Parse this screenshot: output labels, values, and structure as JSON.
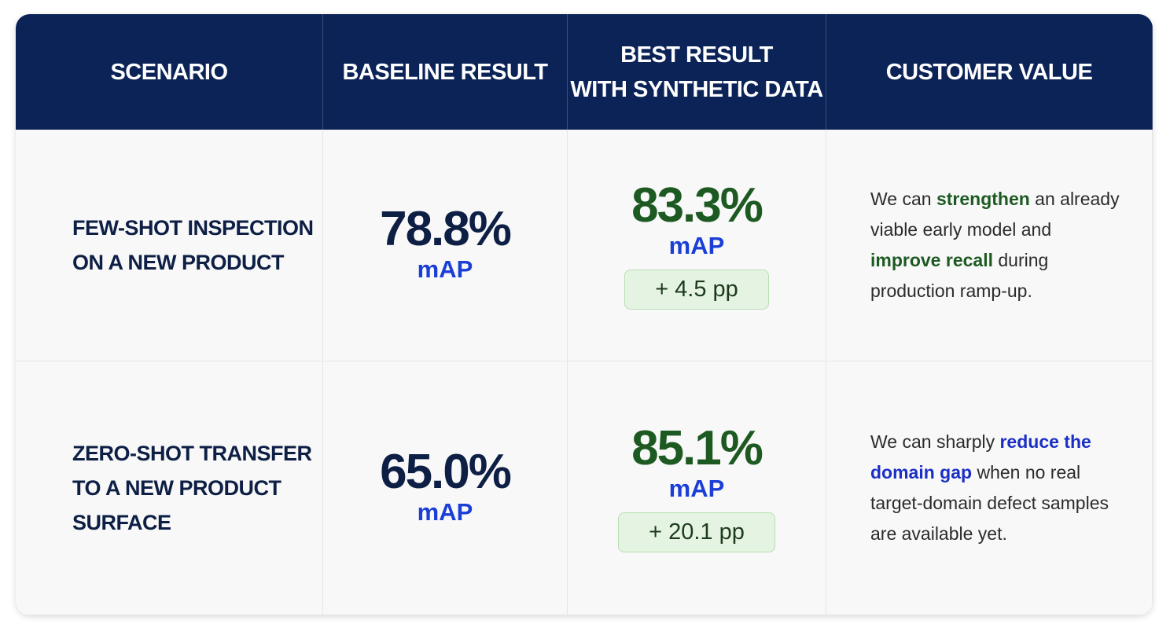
{
  "table": {
    "headers": [
      [
        "SCENARIO"
      ],
      [
        "BASELINE RESULT"
      ],
      [
        "BEST RESULT",
        "WITH SYNTHETIC DATA"
      ],
      [
        "CUSTOMER VALUE"
      ]
    ],
    "rows": [
      {
        "scenario": [
          "FEW-SHOT INSPECTION",
          "ON A NEW PRODUCT"
        ],
        "baseline": {
          "value": "78.8%",
          "unit": "mAP"
        },
        "best": {
          "value": "83.3%",
          "unit": "mAP",
          "delta": "+ 4.5 pp"
        },
        "customer_value": [
          {
            "text": "We can "
          },
          {
            "text": "strengthen",
            "color": "#1d5a22"
          },
          {
            "text": " an already viable early model and "
          },
          {
            "text": "improve recall",
            "color": "#1d5a22"
          },
          {
            "text": " during production ramp-up."
          }
        ]
      },
      {
        "scenario": [
          "ZERO-SHOT TRANSFER",
          "TO A NEW PRODUCT",
          "SURFACE"
        ],
        "baseline": {
          "value": "65.0%",
          "unit": "mAP"
        },
        "best": {
          "value": "85.1%",
          "unit": "mAP",
          "delta": "+ 20.1 pp"
        },
        "customer_value": [
          {
            "text": "We can sharply "
          },
          {
            "text": "reduce the domain gap",
            "color": "#1b2fc4"
          },
          {
            "text": " when no real target-domain defect samples are available yet."
          }
        ]
      }
    ]
  }
}
